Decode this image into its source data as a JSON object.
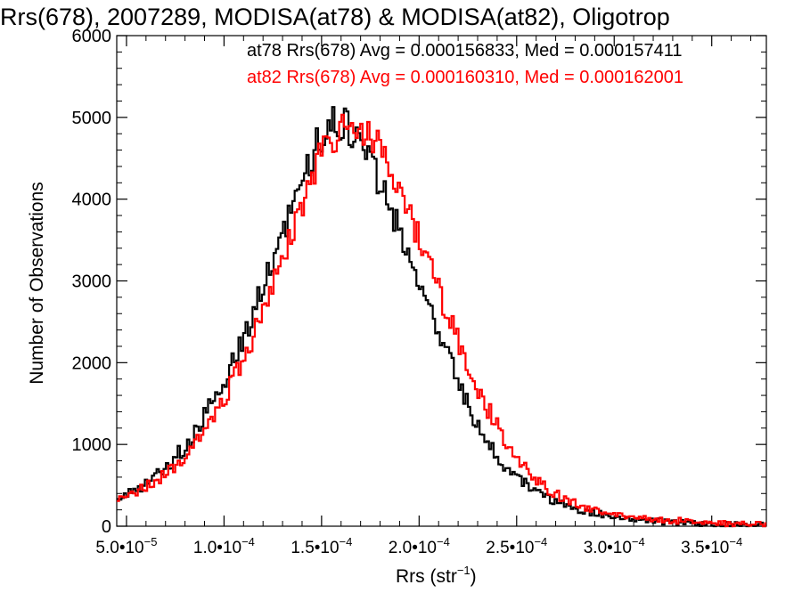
{
  "chart_data": {
    "type": "histogram",
    "title": "Rrs(678), 2007289, MODISA(at78) & MODISA(at82), Oligotrop",
    "xlabel_text": "Rrs (str",
    "xlabel_sup": "−1",
    "xlabel_close": ")",
    "ylabel": "Number of Observations",
    "xlim": [
      4.5e-05,
      0.000378
    ],
    "ylim": [
      0,
      6000
    ],
    "y_ticks": [
      "0",
      "1000",
      "2000",
      "3000",
      "4000",
      "5000",
      "6000"
    ],
    "y_tick_values": [
      0,
      1000,
      2000,
      3000,
      4000,
      5000,
      6000
    ],
    "x_ticks": [
      {
        "value": 5e-05,
        "mantissa": "5.0",
        "exp": "−5"
      },
      {
        "value": 0.0001,
        "mantissa": "1.0",
        "exp": "−4"
      },
      {
        "value": 0.00015,
        "mantissa": "1.5",
        "exp": "−4"
      },
      {
        "value": 0.0002,
        "mantissa": "2.0",
        "exp": "−4"
      },
      {
        "value": 0.00025,
        "mantissa": "2.5",
        "exp": "−4"
      },
      {
        "value": 0.0003,
        "mantissa": "3.0",
        "exp": "−4"
      },
      {
        "value": 0.00035,
        "mantissa": "3.5",
        "exp": "−4"
      }
    ],
    "tick_separator": "•10",
    "legend_entries": [
      {
        "label": "at78 Rrs(678) Avg = 0.000156833, Med = 0.000157411",
        "color": "#000000"
      },
      {
        "label": "at82 Rrs(678) Avg = 0.000160310, Med = 0.000162001",
        "color": "#ff0000"
      }
    ],
    "series": [
      {
        "color": "#000000",
        "peak_x": 0.000158,
        "points": [
          [
            4.5e-05,
            300
          ],
          [
            5e-05,
            380
          ],
          [
            6e-05,
            520
          ],
          [
            7e-05,
            700
          ],
          [
            8e-05,
            980
          ],
          [
            9e-05,
            1350
          ],
          [
            0.0001,
            1780
          ],
          [
            0.00011,
            2300
          ],
          [
            0.00012,
            2900
          ],
          [
            0.00013,
            3600
          ],
          [
            0.00014,
            4300
          ],
          [
            0.00015,
            4800
          ],
          [
            0.000158,
            4950
          ],
          [
            0.000165,
            4850
          ],
          [
            0.000175,
            4500
          ],
          [
            0.000185,
            3900
          ],
          [
            0.000195,
            3300
          ],
          [
            0.000205,
            2650
          ],
          [
            0.000215,
            2050
          ],
          [
            0.000225,
            1480
          ],
          [
            0.000235,
            1030
          ],
          [
            0.000245,
            720
          ],
          [
            0.000255,
            500
          ],
          [
            0.000265,
            350
          ],
          [
            0.000275,
            250
          ],
          [
            0.000285,
            180
          ],
          [
            0.000295,
            140
          ],
          [
            0.00031,
            90
          ],
          [
            0.000325,
            60
          ],
          [
            0.00034,
            40
          ],
          [
            0.000355,
            25
          ],
          [
            0.00037,
            15
          ],
          [
            0.000378,
            10
          ]
        ]
      },
      {
        "color": "#ff0000",
        "peak_x": 0.000163,
        "points": [
          [
            4.5e-05,
            320
          ],
          [
            5e-05,
            360
          ],
          [
            6e-05,
            480
          ],
          [
            7e-05,
            640
          ],
          [
            8e-05,
            880
          ],
          [
            9e-05,
            1180
          ],
          [
            0.0001,
            1550
          ],
          [
            0.00011,
            2050
          ],
          [
            0.00012,
            2600
          ],
          [
            0.00013,
            3300
          ],
          [
            0.00014,
            3950
          ],
          [
            0.00015,
            4550
          ],
          [
            0.00016,
            4880
          ],
          [
            0.000168,
            4920
          ],
          [
            0.000178,
            4700
          ],
          [
            0.000188,
            4250
          ],
          [
            0.000198,
            3650
          ],
          [
            0.000208,
            3000
          ],
          [
            0.000218,
            2400
          ],
          [
            0.000228,
            1800
          ],
          [
            0.000238,
            1300
          ],
          [
            0.000248,
            900
          ],
          [
            0.000258,
            620
          ],
          [
            0.000268,
            420
          ],
          [
            0.000278,
            290
          ],
          [
            0.000288,
            210
          ],
          [
            0.000298,
            160
          ],
          [
            0.000312,
            110
          ],
          [
            0.000327,
            75
          ],
          [
            0.000342,
            50
          ],
          [
            0.000357,
            30
          ],
          [
            0.000372,
            20
          ],
          [
            0.000378,
            15
          ]
        ]
      }
    ]
  }
}
